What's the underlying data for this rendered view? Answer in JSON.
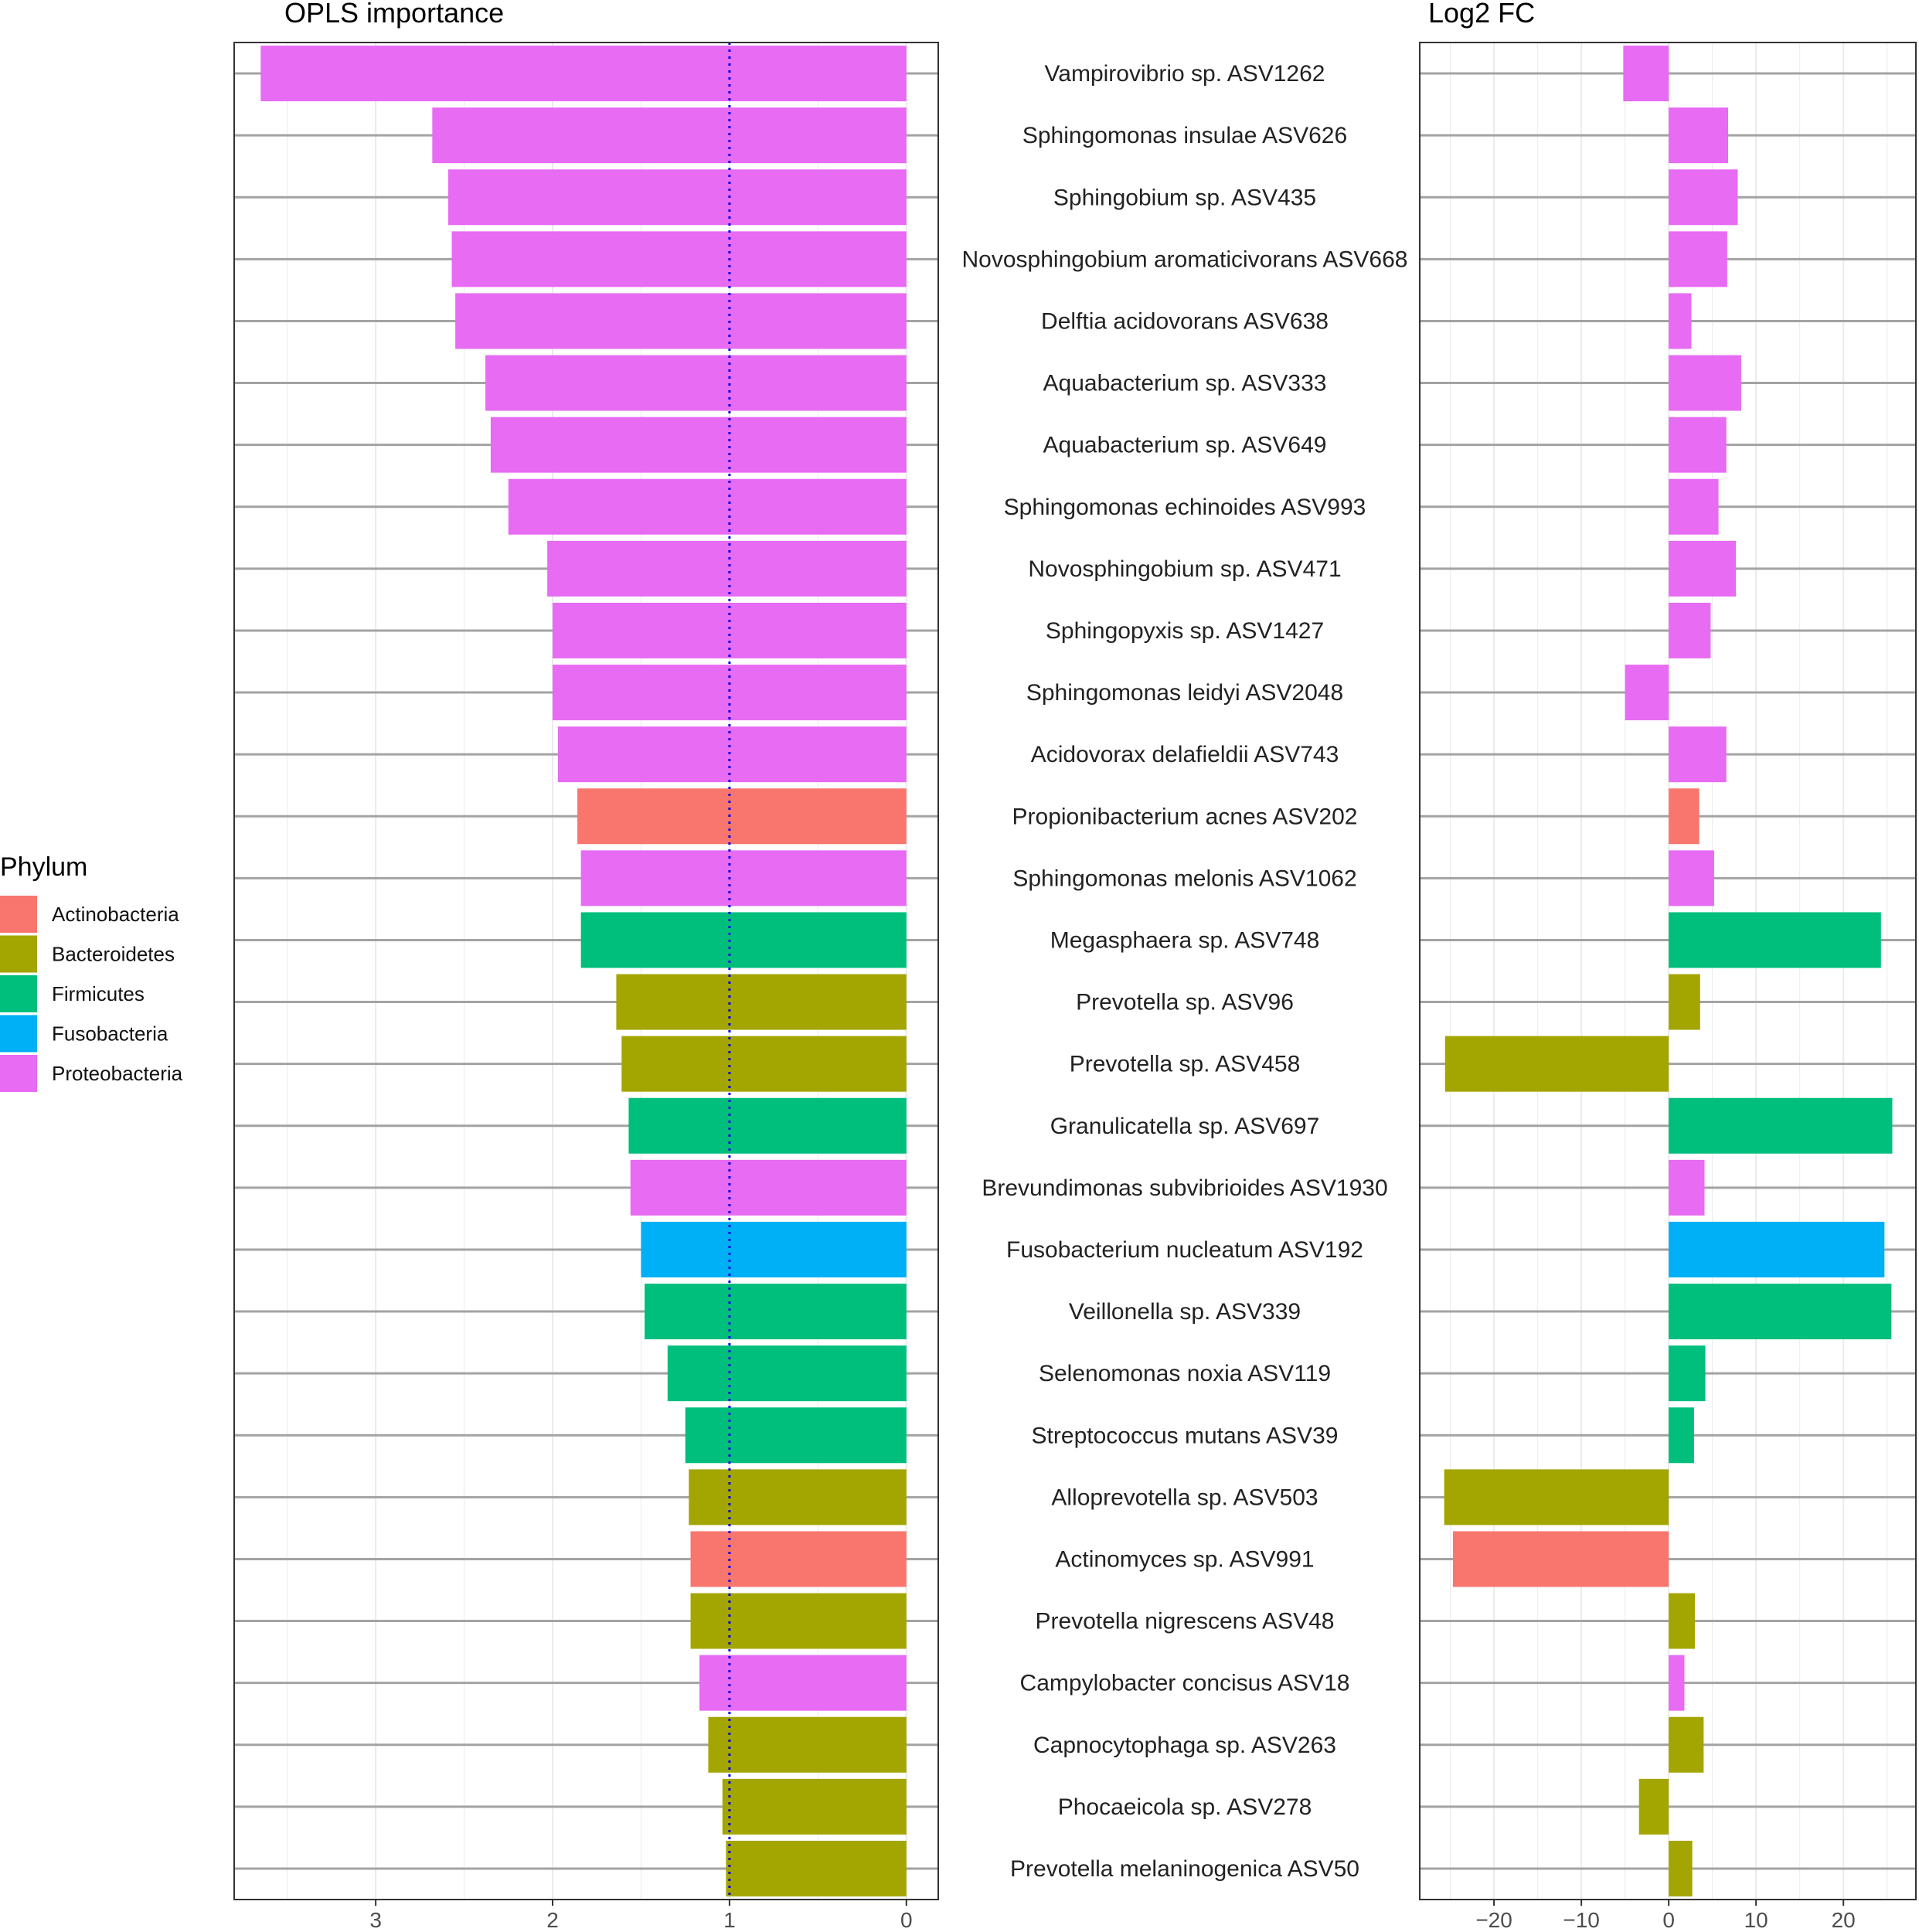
{
  "legend": {
    "title": "Phylum",
    "items": [
      {
        "label": "Actinobacteria",
        "color": "#F8766D"
      },
      {
        "label": "Bacteroidetes",
        "color": "#A3A500"
      },
      {
        "label": "Firmicutes",
        "color": "#00BF7D"
      },
      {
        "label": "Fusobacteria",
        "color": "#00B0F6"
      },
      {
        "label": "Proteobacteria",
        "color": "#E76BF3"
      }
    ]
  },
  "chart_data": [
    {
      "type": "bar",
      "orientation": "horizontal",
      "title": "OPLS importance",
      "x_reversed": true,
      "xlim": [
        3.8,
        -0.18
      ],
      "xticks": [
        3,
        2,
        1,
        0
      ],
      "threshold_line": {
        "value": 1,
        "style": "dotted",
        "color": "#0000EE"
      },
      "categories": [
        "Vampirovibrio sp. ASV1262",
        "Sphingomonas insulae ASV626",
        "Sphingobium sp. ASV435",
        "Novosphingobium aromaticivorans ASV668",
        "Delftia acidovorans ASV638",
        "Aquabacterium sp. ASV333",
        "Aquabacterium sp. ASV649",
        "Sphingomonas echinoides ASV993",
        "Novosphingobium sp. ASV471",
        "Sphingopyxis sp. ASV1427",
        "Sphingomonas leidyi ASV2048",
        "Acidovorax delafieldii ASV743",
        "Propionibacterium acnes ASV202",
        "Sphingomonas melonis ASV1062",
        "Megasphaera sp. ASV748",
        "Prevotella sp. ASV96",
        "Prevotella sp. ASV458",
        "Granulicatella sp. ASV697",
        "Brevundimonas subvibrioides ASV1930",
        "Fusobacterium nucleatum ASV192",
        "Veillonella sp. ASV339",
        "Selenomonas noxia ASV119",
        "Streptococcus mutans ASV39",
        "Alloprevotella sp. ASV503",
        "Actinomyces sp. ASV991",
        "Prevotella nigrescens ASV48",
        "Campylobacter concisus ASV18",
        "Capnocytophaga sp. ASV263",
        "Phocaeicola sp. ASV278",
        "Prevotella melaninogenica ASV50"
      ],
      "values": [
        3.65,
        2.68,
        2.59,
        2.57,
        2.55,
        2.38,
        2.35,
        2.25,
        2.03,
        2.0,
        2.0,
        1.97,
        1.86,
        1.84,
        1.84,
        1.64,
        1.61,
        1.57,
        1.56,
        1.5,
        1.48,
        1.35,
        1.25,
        1.23,
        1.22,
        1.22,
        1.17,
        1.12,
        1.04,
        1.02
      ],
      "phylum": [
        "Proteobacteria",
        "Proteobacteria",
        "Proteobacteria",
        "Proteobacteria",
        "Proteobacteria",
        "Proteobacteria",
        "Proteobacteria",
        "Proteobacteria",
        "Proteobacteria",
        "Proteobacteria",
        "Proteobacteria",
        "Proteobacteria",
        "Actinobacteria",
        "Proteobacteria",
        "Firmicutes",
        "Bacteroidetes",
        "Bacteroidetes",
        "Firmicutes",
        "Proteobacteria",
        "Fusobacteria",
        "Firmicutes",
        "Firmicutes",
        "Firmicutes",
        "Bacteroidetes",
        "Actinobacteria",
        "Bacteroidetes",
        "Proteobacteria",
        "Bacteroidetes",
        "Bacteroidetes",
        "Bacteroidetes"
      ]
    },
    {
      "type": "bar",
      "orientation": "horizontal",
      "title": "Log2 FC",
      "xlim": [
        -28.5,
        28.3
      ],
      "xticks": [
        -20,
        -10,
        0,
        10,
        20
      ],
      "xtick_labels": [
        "−20",
        "−10",
        "0",
        "10",
        "20"
      ],
      "values": [
        -5.2,
        6.8,
        7.9,
        6.7,
        2.6,
        8.3,
        6.6,
        5.7,
        7.7,
        4.8,
        -5.0,
        6.6,
        3.5,
        5.2,
        24.3,
        3.6,
        -25.6,
        25.6,
        4.1,
        24.7,
        25.5,
        4.2,
        2.9,
        -25.7,
        -24.7,
        3.0,
        1.8,
        4.0,
        -3.4,
        2.7
      ]
    }
  ]
}
